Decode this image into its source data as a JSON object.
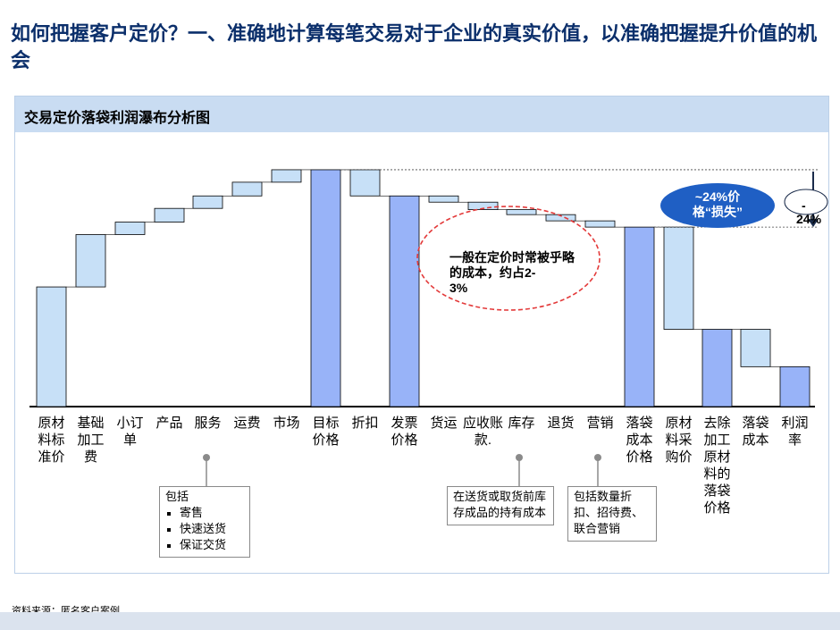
{
  "title": "如何把握客户定价？一、准确地计算每笔交易对于企业的真实价值，以准确把握提升价值的机会",
  "panel_title": "交易定价落袋利润瀑布分析图",
  "source": "资料来源：匿名客户案例",
  "colors": {
    "positive": "#c7e0f7",
    "total": "#98b3f8",
    "negative": "#c7e0f7",
    "ellipse": "#e33a3a",
    "oval": "#1f5fc4",
    "title": "#0b2f6b"
  },
  "chart_data": {
    "type": "waterfall",
    "ylim": [
      0,
      100
    ],
    "bars": [
      {
        "label": "原材料标准价",
        "kind": "delta",
        "start": 0,
        "end": 48
      },
      {
        "label": "基础加工费",
        "kind": "delta",
        "start": 48,
        "end": 69
      },
      {
        "label": "小订单",
        "kind": "delta",
        "start": 69,
        "end": 74
      },
      {
        "label": "产品",
        "kind": "delta",
        "start": 74,
        "end": 79.5
      },
      {
        "label": "服务",
        "kind": "delta",
        "start": 79.5,
        "end": 84.5
      },
      {
        "label": "运费",
        "kind": "delta",
        "start": 84.5,
        "end": 90
      },
      {
        "label": "市场",
        "kind": "delta",
        "start": 90,
        "end": 95
      },
      {
        "label": "目标价格",
        "kind": "total",
        "start": 0,
        "end": 95
      },
      {
        "label": "折扣",
        "kind": "delta",
        "start": 95,
        "end": 84.5
      },
      {
        "label": "发票价格",
        "kind": "total",
        "start": 0,
        "end": 84.5
      },
      {
        "label": "货运",
        "kind": "delta",
        "start": 84.5,
        "end": 82
      },
      {
        "label": "应收账款.",
        "kind": "delta",
        "start": 82,
        "end": 79
      },
      {
        "label": "库存",
        "kind": "delta",
        "start": 79,
        "end": 77
      },
      {
        "label": "退货",
        "kind": "delta",
        "start": 77,
        "end": 74.5
      },
      {
        "label": "营销",
        "kind": "delta",
        "start": 74.5,
        "end": 72
      },
      {
        "label": "落袋成本价格",
        "kind": "total",
        "start": 0,
        "end": 72
      },
      {
        "label": "原材料采购价",
        "kind": "delta",
        "start": 72,
        "end": 31
      },
      {
        "label": "去除加工费",
        "kind": "total",
        "start": 0,
        "end": 31
      },
      {
        "label": "原材料的落袋价格",
        "kind": "delta",
        "start": 31,
        "end": 16
      },
      {
        "label": "落袋成本",
        "kind": "total",
        "start": 0,
        "end": 16
      }
    ],
    "axis_labels": [
      {
        "text": "原材料标准价"
      },
      {
        "text": "基础加工费"
      },
      {
        "text": "小订单"
      },
      {
        "text": "产品"
      },
      {
        "text": "服务"
      },
      {
        "text": "运费"
      },
      {
        "text": "市场"
      },
      {
        "text": "目标价格"
      },
      {
        "text": "折扣"
      },
      {
        "text": "发票价格"
      },
      {
        "text": "货运"
      },
      {
        "text": "应收账款."
      },
      {
        "text": "库存"
      },
      {
        "text": "退货"
      },
      {
        "text": "营销"
      },
      {
        "text": "落袋成本价格"
      },
      {
        "text": "原材料采购价"
      },
      {
        "text": "去除加工原材料的落袋价格"
      },
      {
        "text": "落袋成本"
      },
      {
        "text": "利润率"
      }
    ],
    "annotations": {
      "ellipse_text": "一般在定价时常被乎略的成本，约占2-3%",
      "oval_text": "~24%价格“损失”",
      "arrow_label": "-24%"
    }
  },
  "callouts": [
    {
      "id": "services",
      "heading": "包括",
      "items": [
        "寄售",
        "快速送货",
        "保证交货"
      ]
    },
    {
      "id": "inventory",
      "text": "在送货或取货前库存成品的持有成本"
    },
    {
      "id": "marketing",
      "text": "包括数量折扣、招待费、联合营销"
    }
  ]
}
